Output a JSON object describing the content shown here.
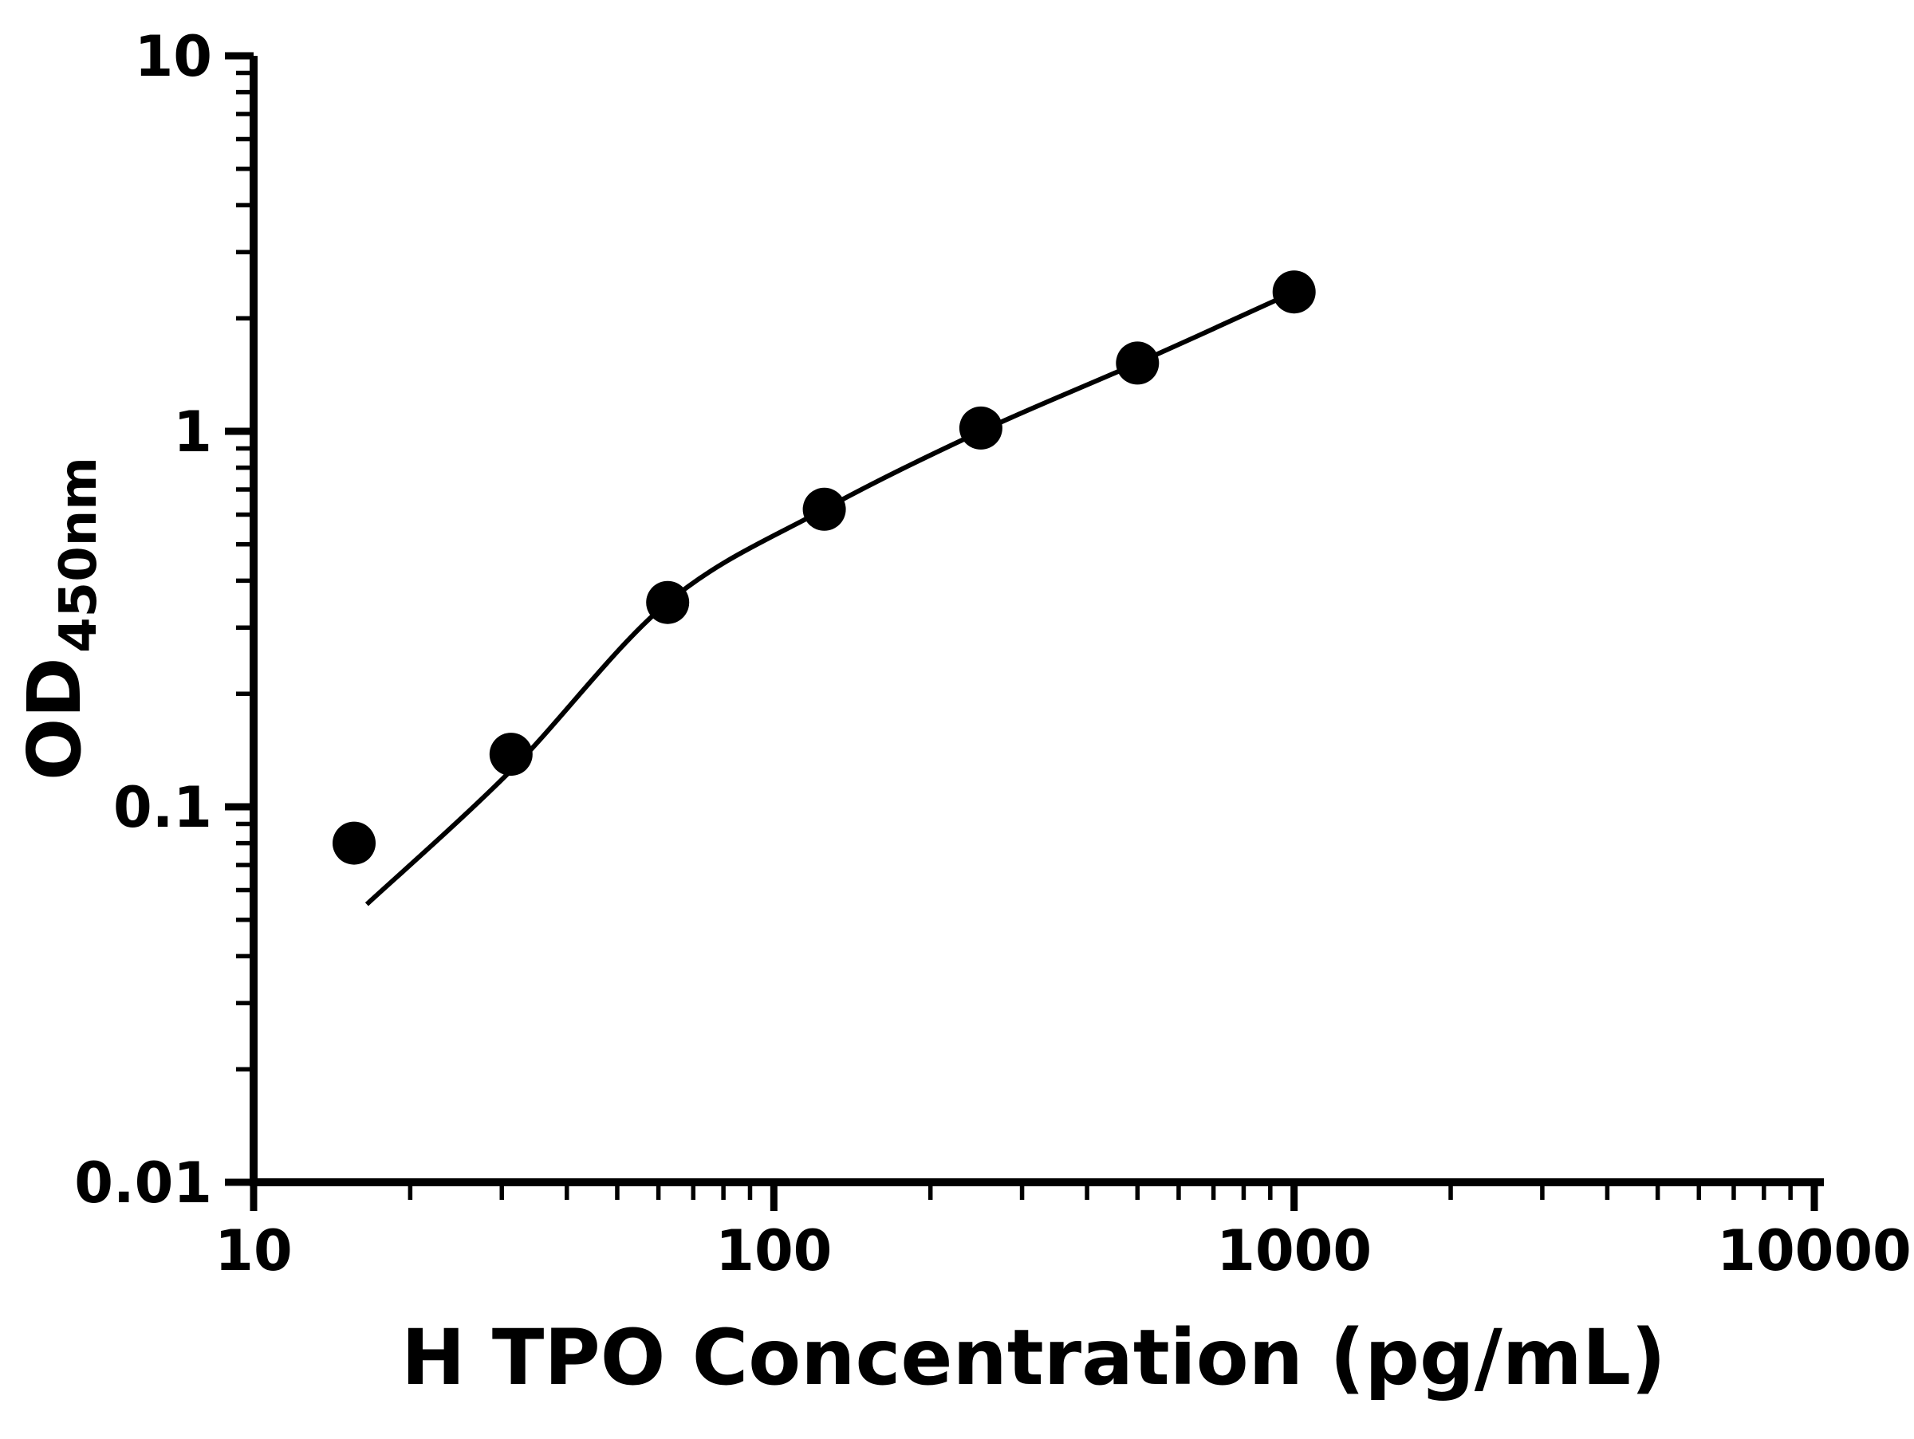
{
  "chart_data": {
    "type": "scatter",
    "title": "",
    "xlabel": "H TPO Concentration (pg/mL)",
    "ylabel": "OD",
    "ylabel_subscript": "450nm",
    "x_scale": "log",
    "y_scale": "log",
    "xlim": [
      10,
      10000
    ],
    "ylim": [
      0.01,
      10
    ],
    "grid": false,
    "legend": "none",
    "x_ticks": [
      10,
      100,
      1000,
      10000
    ],
    "x_tick_labels": [
      "10",
      "100",
      "1000",
      "10000"
    ],
    "y_ticks": [
      10,
      1,
      0.1,
      0.01
    ],
    "y_tick_labels": [
      "10",
      "1",
      "0.1",
      "0.01"
    ],
    "x": [
      15.6,
      31.25,
      62.5,
      125,
      250,
      500,
      1000
    ],
    "y": [
      0.08,
      0.138,
      0.35,
      0.62,
      1.02,
      1.52,
      2.35
    ],
    "fit_curve": [
      [
        16.5,
        0.055
      ],
      [
        31.25,
        0.125
      ],
      [
        62.5,
        0.35
      ],
      [
        125,
        0.62
      ],
      [
        250,
        1.0
      ],
      [
        500,
        1.52
      ],
      [
        1000,
        2.35
      ]
    ],
    "colors": {
      "axis": "#000000",
      "points": "#000000",
      "curve": "#000000",
      "background": "#ffffff"
    }
  }
}
